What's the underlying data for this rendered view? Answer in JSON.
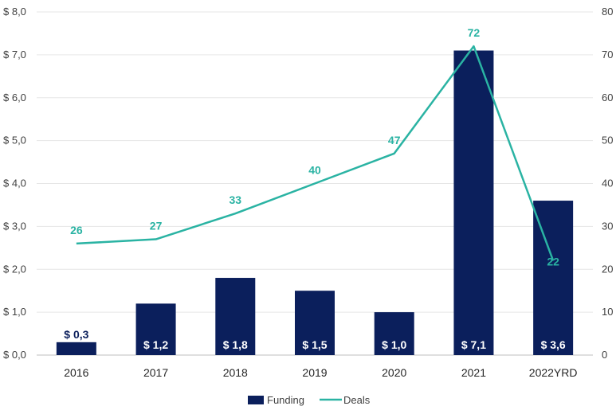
{
  "chart_data": {
    "type": "bar+line",
    "categories": [
      "2016",
      "2017",
      "2018",
      "2019",
      "2020",
      "2021",
      "2022YRD"
    ],
    "series": [
      {
        "name": "Funding",
        "type": "bar",
        "axis": "left",
        "values": [
          0.3,
          1.2,
          1.8,
          1.5,
          1.0,
          7.1,
          3.6
        ],
        "labels": [
          "$ 0,3",
          "$ 1,2",
          "$ 1,8",
          "$ 1,5",
          "$ 1,0",
          "$ 7,1",
          "$ 3,6"
        ],
        "color": "#0b1f5c"
      },
      {
        "name": "Deals",
        "type": "line",
        "axis": "right",
        "values": [
          26,
          27,
          33,
          40,
          47,
          72,
          22
        ],
        "labels": [
          "26",
          "27",
          "33",
          "40",
          "47",
          "72",
          "22"
        ],
        "color": "#2ab3a3"
      }
    ],
    "y_left": {
      "range": [
        0,
        8
      ],
      "ticks": [
        "$ 0,0",
        "$ 1,0",
        "$ 2,0",
        "$ 3,0",
        "$ 4,0",
        "$ 5,0",
        "$ 6,0",
        "$ 7,0",
        "$ 8,0"
      ]
    },
    "y_right": {
      "range": [
        0,
        80
      ],
      "ticks": [
        "0",
        "10",
        "20",
        "30",
        "40",
        "50",
        "60",
        "70",
        "80"
      ]
    },
    "grid": true,
    "legend": "bottom-center"
  }
}
